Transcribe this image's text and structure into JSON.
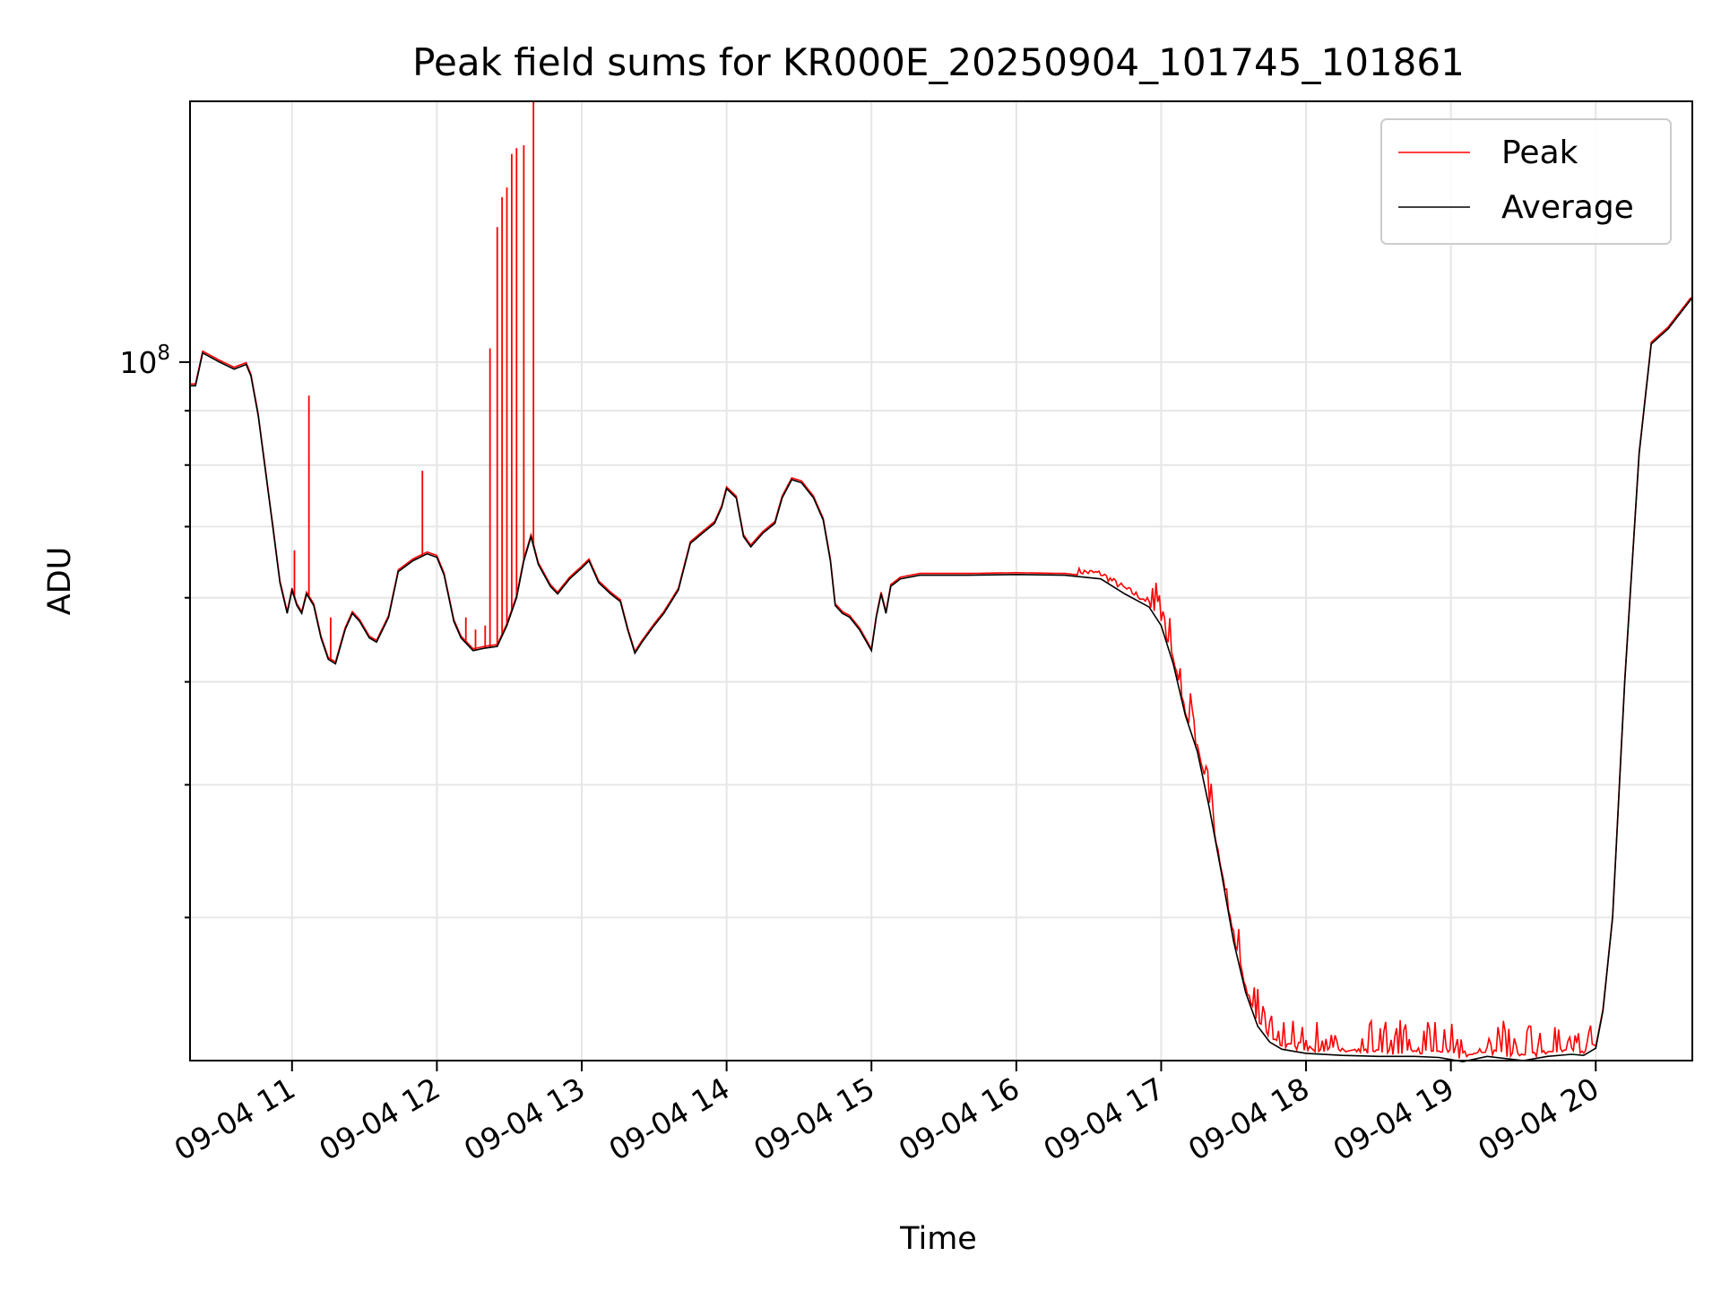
{
  "chart_data": {
    "type": "line",
    "title": "Peak field sums for KR000E_20250904_101745_101861",
    "xlabel": "Time",
    "ylabel": "ADU",
    "y_scale": "log",
    "ylim": [
      22000000,
      176000000
    ],
    "xlim": [
      "2025-09-04 10:17:45",
      "2025-09-04 20:40:00"
    ],
    "grid": true,
    "legend_position": "top-right",
    "x_tick_labels": [
      "09-04 11",
      "09-04 12",
      "09-04 13",
      "09-04 14",
      "09-04 15",
      "09-04 16",
      "09-04 17",
      "09-04 18",
      "09-04 19",
      "09-04 20"
    ],
    "y_tick_labels": [
      {
        "base": "10",
        "exp": "8",
        "value": 100000000
      }
    ],
    "colors": {
      "Peak": "#ff0000",
      "Average": "#000000"
    },
    "series": [
      {
        "name": "Average",
        "color": "#000000",
        "points": [
          [
            "2025-09-04 10:17:45",
            95000000
          ],
          [
            "2025-09-04 10:20:00",
            95000000
          ],
          [
            "2025-09-04 10:23:00",
            102000000
          ],
          [
            "2025-09-04 10:30:00",
            100000000
          ],
          [
            "2025-09-04 10:36:00",
            98500000
          ],
          [
            "2025-09-04 10:41:00",
            99500000
          ],
          [
            "2025-09-04 10:43:00",
            97000000
          ],
          [
            "2025-09-04 10:46:00",
            89000000
          ],
          [
            "2025-09-04 10:52:00",
            70000000
          ],
          [
            "2025-09-04 10:55:00",
            62000000
          ],
          [
            "2025-09-04 10:58:00",
            58000000
          ],
          [
            "2025-09-04 11:00:00",
            61000000
          ],
          [
            "2025-09-04 11:02:00",
            59000000
          ],
          [
            "2025-09-04 11:04:00",
            58000000
          ],
          [
            "2025-09-04 11:06:00",
            60500000
          ],
          [
            "2025-09-04 11:09:00",
            59000000
          ],
          [
            "2025-09-04 11:12:00",
            55000000
          ],
          [
            "2025-09-04 11:15:00",
            52500000
          ],
          [
            "2025-09-04 11:18:00",
            52000000
          ],
          [
            "2025-09-04 11:22:00",
            56000000
          ],
          [
            "2025-09-04 11:25:00",
            58000000
          ],
          [
            "2025-09-04 11:28:00",
            57000000
          ],
          [
            "2025-09-04 11:32:00",
            55000000
          ],
          [
            "2025-09-04 11:35:00",
            54500000
          ],
          [
            "2025-09-04 11:40:00",
            57500000
          ],
          [
            "2025-09-04 11:44:00",
            63500000
          ],
          [
            "2025-09-04 11:50:00",
            65000000
          ],
          [
            "2025-09-04 11:56:00",
            66000000
          ],
          [
            "2025-09-04 12:00:00",
            65500000
          ],
          [
            "2025-09-04 12:03:00",
            63000000
          ],
          [
            "2025-09-04 12:07:00",
            57000000
          ],
          [
            "2025-09-04 12:10:00",
            55000000
          ],
          [
            "2025-09-04 12:15:00",
            53500000
          ],
          [
            "2025-09-04 12:20:00",
            53800000
          ],
          [
            "2025-09-04 12:25:00",
            54000000
          ],
          [
            "2025-09-04 12:29:00",
            56500000
          ],
          [
            "2025-09-04 12:33:00",
            60000000
          ],
          [
            "2025-09-04 12:36:00",
            65000000
          ],
          [
            "2025-09-04 12:39:00",
            68500000
          ],
          [
            "2025-09-04 12:42:00",
            64500000
          ],
          [
            "2025-09-04 12:47:00",
            61500000
          ],
          [
            "2025-09-04 12:50:00",
            60500000
          ],
          [
            "2025-09-04 12:55:00",
            62500000
          ],
          [
            "2025-09-04 13:00:00",
            64000000
          ],
          [
            "2025-09-04 13:03:00",
            65000000
          ],
          [
            "2025-09-04 13:07:00",
            62000000
          ],
          [
            "2025-09-04 13:12:00",
            60500000
          ],
          [
            "2025-09-04 13:16:00",
            59500000
          ],
          [
            "2025-09-04 13:19:00",
            56000000
          ],
          [
            "2025-09-04 13:22:00",
            53200000
          ],
          [
            "2025-09-04 13:25:00",
            54500000
          ],
          [
            "2025-09-04 13:30:00",
            56500000
          ],
          [
            "2025-09-04 13:34:00",
            58000000
          ],
          [
            "2025-09-04 13:40:00",
            61000000
          ],
          [
            "2025-09-04 13:45:00",
            67500000
          ],
          [
            "2025-09-04 13:50:00",
            69000000
          ],
          [
            "2025-09-04 13:55:00",
            70500000
          ],
          [
            "2025-09-04 13:58:00",
            73000000
          ],
          [
            "2025-09-04 14:00:00",
            76000000
          ],
          [
            "2025-09-04 14:04:00",
            74500000
          ],
          [
            "2025-09-04 14:07:00",
            68500000
          ],
          [
            "2025-09-04 14:10:00",
            67000000
          ],
          [
            "2025-09-04 14:15:00",
            69000000
          ],
          [
            "2025-09-04 14:20:00",
            70500000
          ],
          [
            "2025-09-04 14:23:00",
            74500000
          ],
          [
            "2025-09-04 14:27:00",
            77500000
          ],
          [
            "2025-09-04 14:31:00",
            77000000
          ],
          [
            "2025-09-04 14:36:00",
            74500000
          ],
          [
            "2025-09-04 14:40:00",
            71000000
          ],
          [
            "2025-09-04 14:43:00",
            65000000
          ],
          [
            "2025-09-04 14:45:00",
            59000000
          ],
          [
            "2025-09-04 14:48:00",
            58000000
          ],
          [
            "2025-09-04 14:51:00",
            57500000
          ],
          [
            "2025-09-04 14:55:00",
            56000000
          ],
          [
            "2025-09-04 14:58:00",
            54500000
          ],
          [
            "2025-09-04 15:00:00",
            53500000
          ],
          [
            "2025-09-04 15:02:00",
            57500000
          ],
          [
            "2025-09-04 15:04:00",
            60500000
          ],
          [
            "2025-09-04 15:06:00",
            58000000
          ],
          [
            "2025-09-04 15:08:00",
            61500000
          ],
          [
            "2025-09-04 15:12:00",
            62500000
          ],
          [
            "2025-09-04 15:20:00",
            63000000
          ],
          [
            "2025-09-04 15:40:00",
            63000000
          ],
          [
            "2025-09-04 16:00:00",
            63100000
          ],
          [
            "2025-09-04 16:20:00",
            63000000
          ],
          [
            "2025-09-04 16:35:00",
            62500000
          ],
          [
            "2025-09-04 16:45:00",
            60500000
          ],
          [
            "2025-09-04 16:55:00",
            58800000
          ],
          [
            "2025-09-04 17:00:00",
            56500000
          ],
          [
            "2025-09-04 17:05:00",
            52000000
          ],
          [
            "2025-09-04 17:10:00",
            46500000
          ],
          [
            "2025-09-04 17:15:00",
            43000000
          ],
          [
            "2025-09-04 17:20:00",
            38000000
          ],
          [
            "2025-09-04 17:25:00",
            33000000
          ],
          [
            "2025-09-04 17:30:00",
            28500000
          ],
          [
            "2025-09-04 17:35:00",
            25500000
          ],
          [
            "2025-09-04 17:40:00",
            23700000
          ],
          [
            "2025-09-04 17:45:00",
            22900000
          ],
          [
            "2025-09-04 17:50:00",
            22550000
          ],
          [
            "2025-09-04 18:00:00",
            22350000
          ],
          [
            "2025-09-04 18:15:00",
            22250000
          ],
          [
            "2025-09-04 18:30:00",
            22200000
          ],
          [
            "2025-09-04 18:45:00",
            22200000
          ],
          [
            "2025-09-04 18:55:00",
            22150000
          ],
          [
            "2025-09-04 19:05:00",
            21950000
          ],
          [
            "2025-09-04 19:15:00",
            22200000
          ],
          [
            "2025-09-04 19:30:00",
            22000000
          ],
          [
            "2025-09-04 19:40:00",
            22200000
          ],
          [
            "2025-09-04 19:50:00",
            22300000
          ],
          [
            "2025-09-04 19:55:00",
            22250000
          ],
          [
            "2025-09-04 20:00:00",
            22600000
          ],
          [
            "2025-09-04 20:03:00",
            24500000
          ],
          [
            "2025-09-04 20:07:00",
            30000000
          ],
          [
            "2025-09-04 20:12:00",
            50000000
          ],
          [
            "2025-09-04 20:18:00",
            82000000
          ],
          [
            "2025-09-04 20:23:00",
            104000000
          ],
          [
            "2025-09-04 20:30:00",
            107500000
          ],
          [
            "2025-09-04 20:40:00",
            115000000
          ]
        ]
      },
      {
        "name": "Peak",
        "color": "#ff0000",
        "spikes": [
          [
            "2025-09-04 11:01:00",
            66500000
          ],
          [
            "2025-09-04 11:07:00",
            93000000
          ],
          [
            "2025-09-04 11:16:00",
            57500000
          ],
          [
            "2025-09-04 11:54:00",
            79000000
          ],
          [
            "2025-09-04 12:12:00",
            57500000
          ],
          [
            "2025-09-04 12:16:00",
            56000000
          ],
          [
            "2025-09-04 12:20:00",
            56500000
          ],
          [
            "2025-09-04 12:22:00",
            103000000
          ],
          [
            "2025-09-04 12:25:00",
            134000000
          ],
          [
            "2025-09-04 12:27:00",
            143000000
          ],
          [
            "2025-09-04 12:29:00",
            146000000
          ],
          [
            "2025-09-04 12:31:00",
            157000000
          ],
          [
            "2025-09-04 12:33:00",
            159000000
          ],
          [
            "2025-09-04 12:36:00",
            160000000
          ],
          [
            "2025-09-04 12:40:00",
            178000000
          ]
        ]
      }
    ]
  }
}
